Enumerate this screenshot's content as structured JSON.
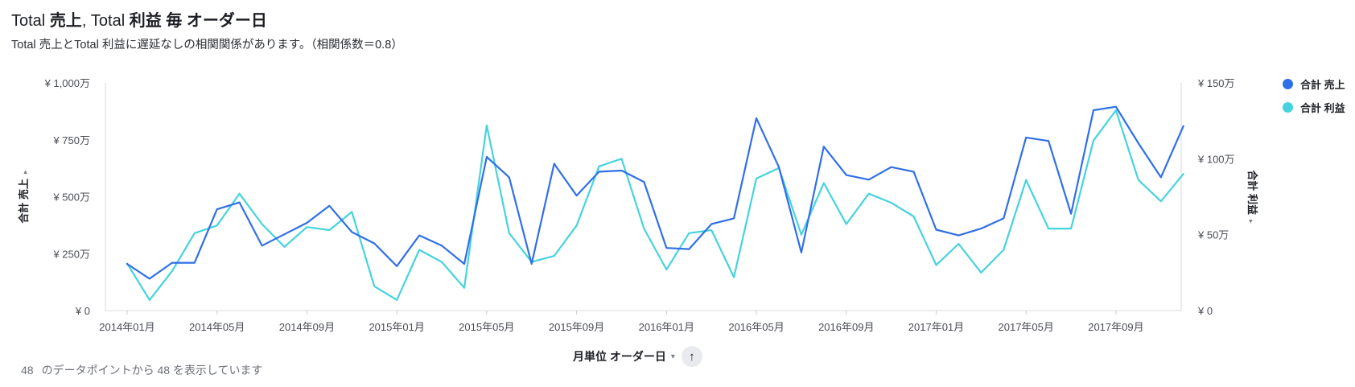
{
  "header": {
    "title_parts": [
      "Total ",
      "売上",
      ", Total ",
      "利益",
      " 毎 ",
      "オーダー日"
    ],
    "subtitle": "Total 売上とTotal 利益に遅延なしの相関関係があります。（相関係数＝0.8）"
  },
  "legend": {
    "items": [
      {
        "label": "合計 売上",
        "color": "#2f6fe8"
      },
      {
        "label": "合計 利益",
        "color": "#45d3de"
      }
    ]
  },
  "x_axis": {
    "title": "月単位 オーダー日",
    "caret": "▾",
    "sort_icon": "↑",
    "ticks": [
      "2014年01月",
      "2014年05月",
      "2014年09月",
      "2015年01月",
      "2015年05月",
      "2015年09月",
      "2016年01月",
      "2016年05月",
      "2016年09月",
      "2017年01月",
      "2017年05月",
      "2017年09月"
    ]
  },
  "y_left": {
    "title": "合計 売上",
    "caret": "▸",
    "ticks": [
      "¥ 0",
      "¥ 250万",
      "¥ 500万",
      "¥ 750万",
      "¥ 1,000万"
    ]
  },
  "y_right": {
    "title": "合計 利益",
    "caret": "▸",
    "ticks": [
      "¥ 0",
      "¥ 50万",
      "¥ 100万",
      "¥ 150万"
    ]
  },
  "footer": {
    "count": "48",
    "text": "のデータポイントから 48 を表示しています"
  },
  "chart_data": {
    "type": "line",
    "x_unit": "month",
    "x": [
      "2014-01",
      "2014-02",
      "2014-03",
      "2014-04",
      "2014-05",
      "2014-06",
      "2014-07",
      "2014-08",
      "2014-09",
      "2014-10",
      "2014-11",
      "2014-12",
      "2015-01",
      "2015-02",
      "2015-03",
      "2015-04",
      "2015-05",
      "2015-06",
      "2015-07",
      "2015-08",
      "2015-09",
      "2015-10",
      "2015-11",
      "2015-12",
      "2016-01",
      "2016-02",
      "2016-03",
      "2016-04",
      "2016-05",
      "2016-06",
      "2016-07",
      "2016-08",
      "2016-09",
      "2016-10",
      "2016-11",
      "2016-12",
      "2017-01",
      "2017-02",
      "2017-03",
      "2017-04",
      "2017-05",
      "2017-06",
      "2017-07",
      "2017-08",
      "2017-09",
      "2017-10",
      "2017-11",
      "2017-12"
    ],
    "series": [
      {
        "name": "合計 売上",
        "axis": "left",
        "color": "#2f6fe8",
        "values": [
          2050000,
          1400000,
          2100000,
          2100000,
          4450000,
          4750000,
          2850000,
          3350000,
          3850000,
          4600000,
          3450000,
          2950000,
          1950000,
          3300000,
          2850000,
          2050000,
          6750000,
          5850000,
          2050000,
          6450000,
          5050000,
          6100000,
          6150000,
          5650000,
          2750000,
          2700000,
          3800000,
          4050000,
          8450000,
          6300000,
          2550000,
          7200000,
          5950000,
          5750000,
          6300000,
          6100000,
          3550000,
          3300000,
          3600000,
          4050000,
          7600000,
          7450000,
          4250000,
          8800000,
          8950000,
          7350000,
          5850000,
          8100000
        ]
      },
      {
        "name": "合計 利益",
        "axis": "right",
        "color": "#45d3de",
        "values": [
          310000,
          70000,
          260000,
          510000,
          560000,
          770000,
          570000,
          420000,
          550000,
          530000,
          650000,
          160000,
          70000,
          400000,
          320000,
          150000,
          1220000,
          510000,
          320000,
          360000,
          560000,
          950000,
          1000000,
          540000,
          270000,
          510000,
          530000,
          220000,
          870000,
          940000,
          500000,
          840000,
          570000,
          770000,
          710000,
          620000,
          300000,
          440000,
          250000,
          400000,
          860000,
          540000,
          540000,
          1120000,
          1320000,
          860000,
          720000,
          900000
        ]
      }
    ],
    "ylim_left": [
      0,
      10000000
    ],
    "ylim_right": [
      0,
      1500000
    ],
    "legend_position": "right",
    "grid": false
  }
}
